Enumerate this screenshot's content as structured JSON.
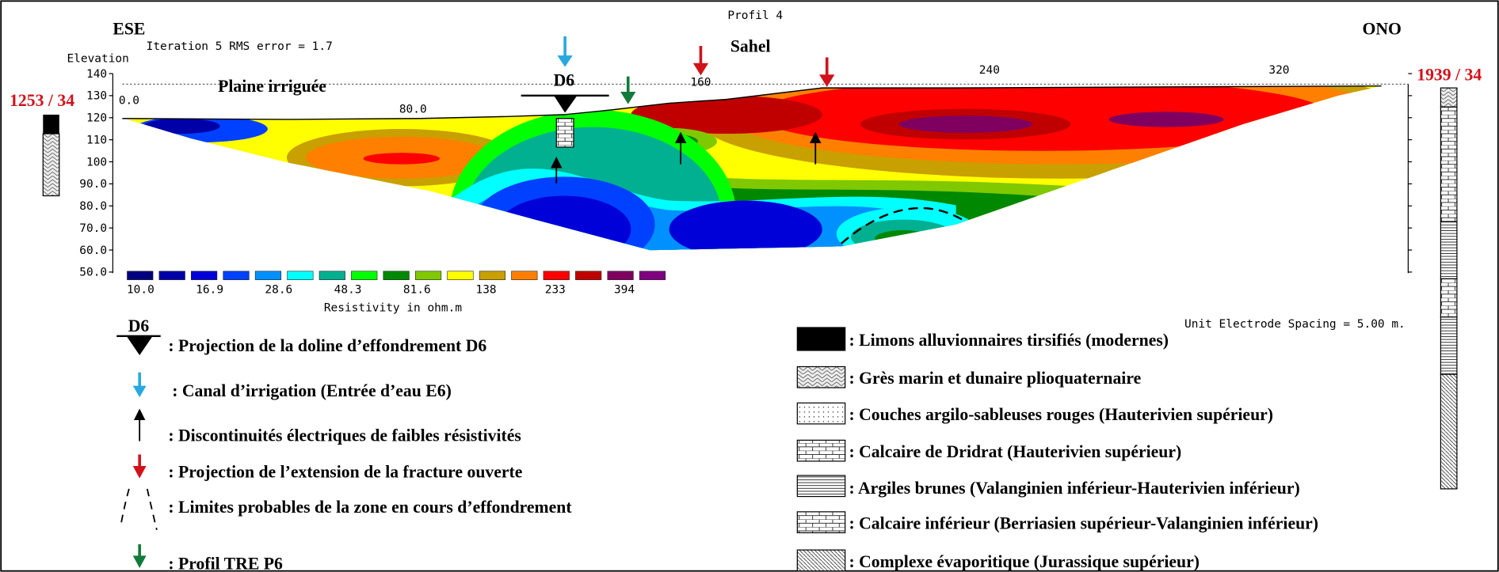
{
  "header": {
    "title": "Profil 4",
    "left_direction": "ESE",
    "right_direction": "ONO",
    "iteration": "Iteration 5 RMS error = 1.7",
    "elevation_label": "Elevation",
    "locality": "Sahel",
    "plain": "Plaine irriguée",
    "doline": "D6",
    "left_borehole": "1253 / 34",
    "right_borehole": "1939 / 34"
  },
  "axes": {
    "elevation_ticks": [
      "140",
      "130",
      "120",
      "110",
      "100",
      "90.0",
      "80.0",
      "70.0",
      "60.0",
      "50.0"
    ],
    "distance_ticks": [
      "0.0",
      "80.0",
      "160",
      "240",
      "320"
    ]
  },
  "color_scale": {
    "labels": [
      "10.0",
      "16.9",
      "28.6",
      "48.3",
      "81.6",
      "138",
      "233",
      "394"
    ],
    "title": "Resistivity in ohm.m"
  },
  "spacing_note": "Unit Electrode Spacing = 5.00 m.",
  "legend_symbols": {
    "doline_label": "D6",
    "items": [
      ": Projection de la doline d’effondrement D6",
      ": Canal d’irrigation (Entrée d’eau E6)",
      ": Discontinuités électriques de faibles résistivités",
      ": Projection de l’extension de la fracture ouverte",
      ": Limites probables de la zone en cours d’effondrement",
      ": Profil TRE P6"
    ]
  },
  "legend_lithology": [
    ": Limons alluvionnaires tirsifiés (modernes)",
    ": Grès marin et dunaire plioquaternaire",
    ": Couches argilo-sableuses rouges  (Hauterivien supérieur)",
    ": Calcaire de Dridrat (Hauterivien supérieur)",
    ": Argiles brunes (Valanginien inférieur-Hauterivien inférieur)",
    ": Calcaire inférieur (Berriasien supérieur-Valanginien inférieur)",
    ": Complexe évaporitique (Jurassique supérieur)"
  ]
}
